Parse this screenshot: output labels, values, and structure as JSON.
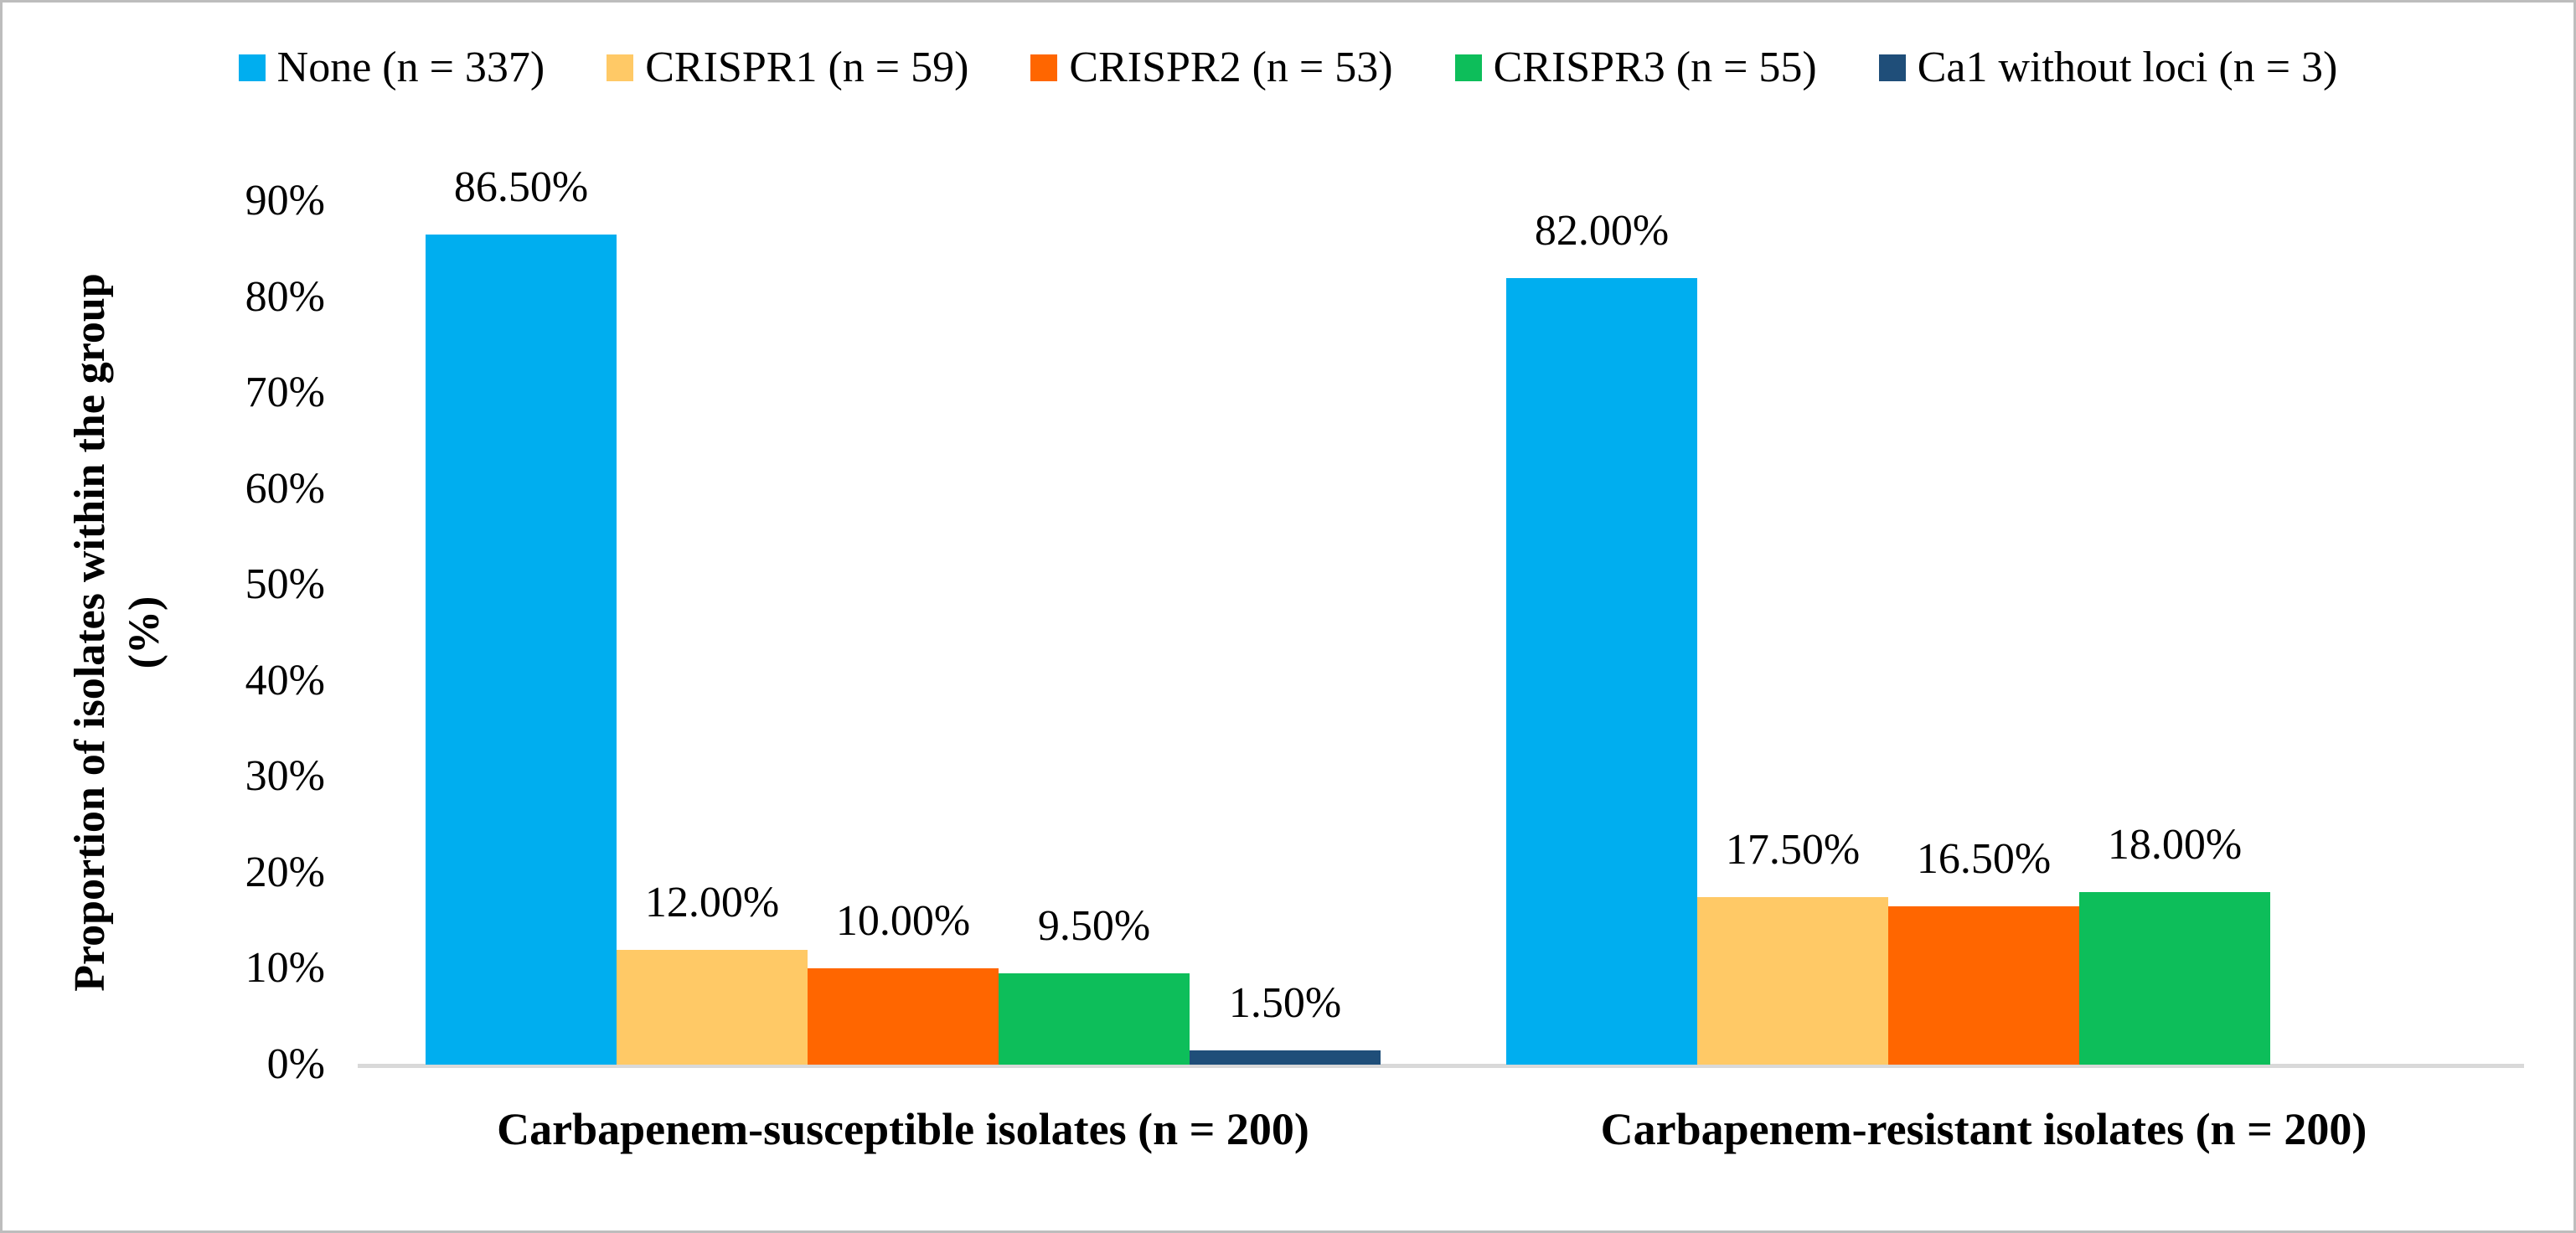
{
  "chart_data": {
    "type": "bar",
    "title": "",
    "ylabel": "Proportion of isolates within the group (%)",
    "ylabel_line1": "Proportion of isolates within the group",
    "ylabel_line2": "(%)",
    "xlabel": "",
    "ymax": 90,
    "ylim": [
      0,
      90
    ],
    "grid": false,
    "legend_position": "top",
    "categories": [
      "Carbapenem-susceptible isolates (n = 200)",
      "Carbapenem-resistant isolates (n = 200)"
    ],
    "ytick_values": [
      0,
      10,
      20,
      30,
      40,
      50,
      60,
      70,
      80,
      90
    ],
    "ytick_labels": [
      "0%",
      "10%",
      "20%",
      "30%",
      "40%",
      "50%",
      "60%",
      "70%",
      "80%",
      "90%"
    ],
    "series": [
      {
        "name": "None (n = 337)",
        "color": "#00AEEF",
        "values": [
          86.5,
          82.0
        ],
        "labels": [
          "86.50%",
          "82.00%"
        ]
      },
      {
        "name": "CRISPR1 (n = 59)",
        "color": "#FFC966",
        "values": [
          12.0,
          17.5
        ],
        "labels": [
          "12.00%",
          "17.50%"
        ]
      },
      {
        "name": "CRISPR2 (n = 53)",
        "color": "#FF6600",
        "values": [
          10.0,
          16.5
        ],
        "labels": [
          "10.00%",
          "16.50%"
        ]
      },
      {
        "name": "CRISPR3 (n = 55)",
        "color": "#0DBE5A",
        "values": [
          9.5,
          18.0
        ],
        "labels": [
          "9.50%",
          "18.00%"
        ]
      },
      {
        "name": "Ca1 without loci (n = 3)",
        "color": "#1F4E79",
        "values": [
          1.5,
          null
        ],
        "labels": [
          "1.50%",
          null
        ]
      }
    ],
    "colors": {
      "axis_line": "#d9d9d9",
      "figure_border": "#bdbdbd",
      "text": "#000000"
    }
  }
}
